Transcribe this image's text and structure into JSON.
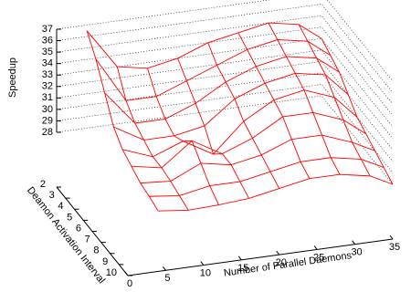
{
  "chart_data": {
    "type": "surface",
    "z_label": "Speedup",
    "x_label": "Number of Parallel Daemons",
    "y_label": "Deamon Activation Interval",
    "color": "#ff0000",
    "grid": true,
    "x": [
      4,
      8,
      12,
      16,
      20,
      24,
      28,
      32,
      35
    ],
    "y": [
      2,
      3,
      4,
      5,
      6,
      7,
      8,
      9,
      10
    ],
    "z": [
      [
        36.5,
        33,
        32.5,
        33,
        34,
        34.5,
        35,
        34.5,
        33
      ],
      [
        35,
        31,
        31,
        32,
        33,
        34,
        34.5,
        34,
        32.5
      ],
      [
        33,
        30,
        30,
        31,
        32.5,
        33.5,
        34,
        33.5,
        32
      ],
      [
        31,
        29.5,
        29.5,
        30,
        32,
        33,
        33.5,
        33,
        31
      ],
      [
        30,
        29,
        30,
        28.5,
        31,
        32.5,
        33,
        32,
        30
      ],
      [
        29.5,
        29,
        31,
        29.5,
        30.5,
        32,
        32,
        31,
        29.5
      ],
      [
        29,
        28.8,
        30,
        29.5,
        30,
        31,
        31,
        30,
        29
      ],
      [
        28.8,
        28.5,
        29,
        29,
        29.5,
        30,
        30,
        29.5,
        28.5
      ],
      [
        28.5,
        28.2,
        28.3,
        28.5,
        29,
        29.5,
        29.5,
        29,
        28
      ]
    ],
    "xlim": [
      0,
      35
    ],
    "ylim": [
      2,
      10
    ],
    "zlim": [
      28,
      37
    ],
    "xticks": [
      0,
      5,
      10,
      15,
      20,
      25,
      30,
      35
    ],
    "yticks": [
      2,
      3,
      4,
      5,
      6,
      7,
      8,
      9,
      10
    ],
    "zticks": [
      28,
      29,
      30,
      31,
      32,
      33,
      34,
      35,
      36,
      37
    ]
  }
}
